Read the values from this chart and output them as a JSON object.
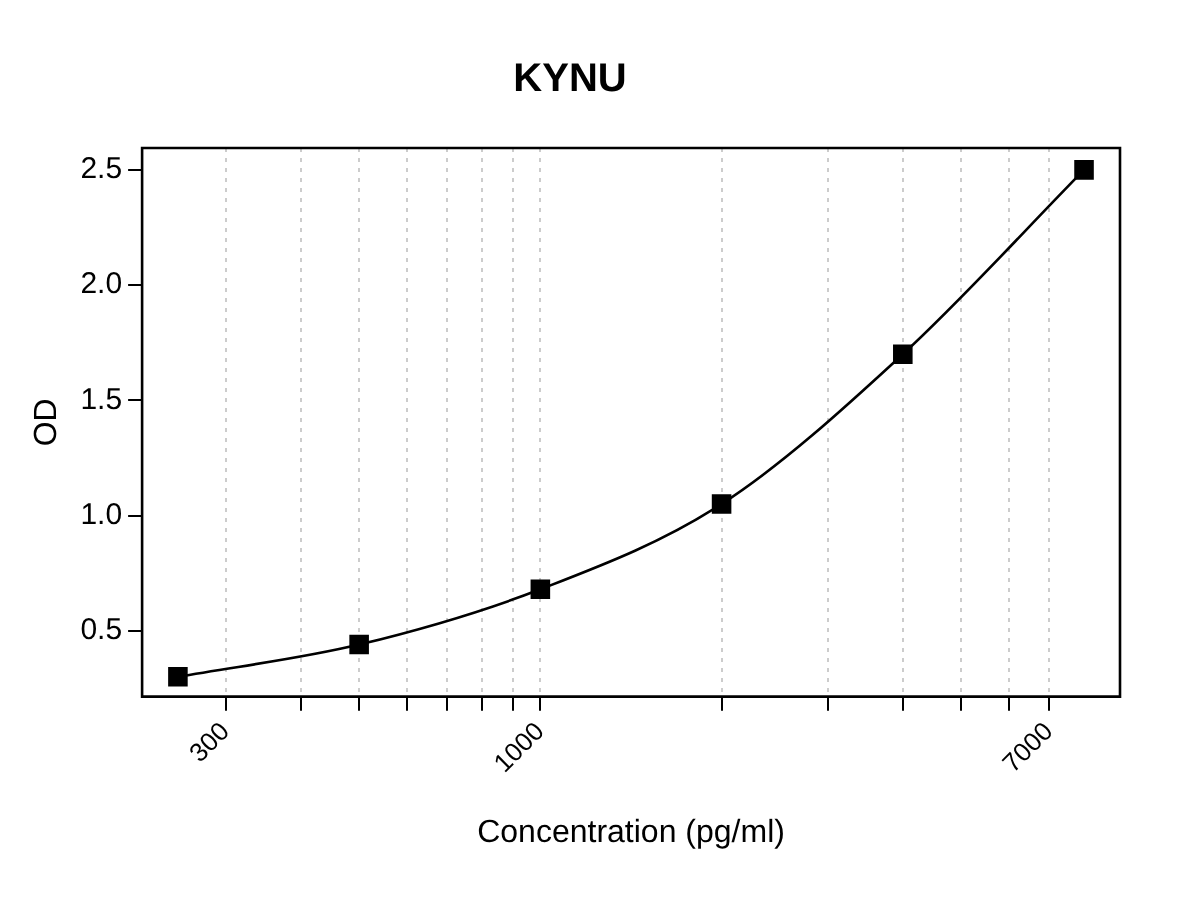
{
  "chart_data": {
    "type": "line",
    "title": "KYNU",
    "xlabel": "Concentration (pg/ml)",
    "ylabel": "OD",
    "x": [
      250,
      500,
      1000,
      2000,
      4000,
      8000
    ],
    "series": [
      {
        "color": "#000000",
        "values": [
          0.3,
          0.44,
          0.68,
          1.05,
          1.7,
          2.5
        ]
      }
    ],
    "log": "x",
    "xlim": [
      218,
      9180
    ],
    "xticks": [
      300,
      {
        "value": 400,
        "label": null
      },
      {
        "value": 500,
        "label": null
      },
      {
        "value": 600,
        "label": null
      },
      {
        "value": 700,
        "label": null
      },
      {
        "value": 800,
        "label": null
      },
      {
        "value": 900,
        "label": null
      },
      1000,
      {
        "value": 2000,
        "label": null
      },
      {
        "value": 3000,
        "label": null
      },
      {
        "value": 4000,
        "label": null
      },
      {
        "value": 5000,
        "label": null
      },
      {
        "value": 6000,
        "label": null
      },
      7000
    ],
    "ylim": [
      0.214,
      2.595
    ],
    "yticks": [
      {
        "value": 0.5,
        "label": "0.5"
      },
      {
        "value": 1.0,
        "label": "1.0"
      },
      {
        "value": 1.5,
        "label": "1.5"
      },
      {
        "value": 2.0,
        "label": "2.0"
      },
      {
        "value": 2.5,
        "label": "2.5"
      }
    ],
    "grid": "x",
    "marker": "square",
    "line_style": "solid",
    "legend": false
  }
}
